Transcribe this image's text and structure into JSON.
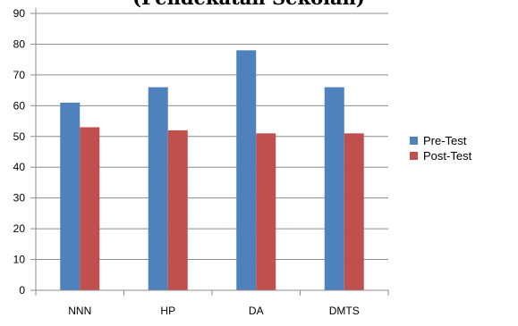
{
  "chart_data": {
    "type": "bar",
    "title": "(Pendekatan Sekolah)",
    "xlabel": "",
    "ylabel": "",
    "categories": [
      "NNN",
      "HP",
      "DA",
      "DMTS"
    ],
    "series": [
      {
        "name": "Pre-Test",
        "color": "#4f81bd",
        "values": [
          61,
          66,
          78,
          66
        ]
      },
      {
        "name": "Post-Test",
        "color": "#c0504d",
        "values": [
          53,
          52,
          51,
          51
        ]
      }
    ],
    "ylim": [
      0,
      90
    ],
    "yticks": [
      0,
      10,
      20,
      30,
      40,
      50,
      60,
      70,
      80,
      90
    ],
    "grid": true,
    "legend": "right"
  }
}
